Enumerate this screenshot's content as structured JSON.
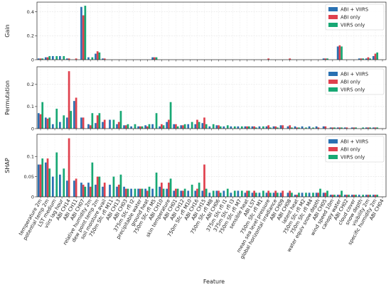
{
  "chart_data": {
    "type": "bar",
    "xlabel": "Feature",
    "legend_position": "top-right",
    "grid": true,
    "categories": [
      "temperature 2m",
      "potential temp 2m",
      "LST medium",
      "viirs lag hour",
      "ABI CH14",
      "ABI CH11",
      "ABI CH07",
      "relative humidity 2m",
      "dew point temp 2m",
      "soil moisture avail",
      "750m Sfc rfl M11",
      "ABI CH13",
      "ABI CH03",
      "375m Sfc rfl I2",
      "precipitable water",
      "ground heat",
      "750m Sfc rfl M5",
      "ABI CH10",
      "skin temperature",
      "ABI CH01",
      "ABI CH12",
      "750m Sfc rfl M10",
      "ABI CH16",
      "ABI CH15",
      "750m Sfc rfl M8",
      "ABI CH06",
      "375m Sfc rfl I1",
      "375m Sfc rfl I3",
      "750m Sfc rfl M7",
      "sensible heat",
      "ABI LST",
      "750m Sfc rfl M1",
      "mean sea level pressure",
      "global horizontal irradiance",
      "ABI CH09",
      "ABI CH08",
      "latent heat",
      "750m Sfc rfl M2",
      "750m Sfc rfl M4",
      "water equiv snow depth",
      "ABI CH05",
      "wind speed 10m",
      "canopy water",
      "ABI CH02",
      "cloud cover",
      "snow depth",
      "visibility 2m",
      "specific humidity 2m",
      "ABI CH04"
    ],
    "colors": {
      "ABI + VIIRS": "#2a71b2",
      "ABI only": "#e0414e",
      "VIIRS only": "#18a874"
    },
    "panels": [
      {
        "ylabel": "Gain",
        "ylim": [
          0,
          0.48
        ],
        "yticks": [
          0,
          0.2,
          0.4
        ],
        "series": [
          {
            "name": "ABI + VIIRS",
            "values": [
              0.01,
              0.02,
              0.03,
              0.03,
              0.01,
              0.0,
              0.44,
              0.02,
              0.05,
              0.01,
              0.0,
              0.0,
              0.0,
              0.0,
              0.0,
              0.0,
              0.02,
              0.0,
              0.0,
              0.0,
              0.0,
              0.0,
              0.0,
              0.0,
              0.0,
              0.0,
              0.0,
              0.0,
              0.0,
              0.0,
              0.0,
              0.0,
              0.0,
              0.0,
              0.0,
              0.0,
              0.0,
              0.0,
              0.0,
              0.0,
              0.01,
              0.0,
              0.11,
              0.0,
              0.0,
              0.01,
              0.01,
              0.03,
              0.0
            ]
          },
          {
            "name": "ABI only",
            "values": [
              0.01,
              0.02,
              0.0,
              0.0,
              0.01,
              0.01,
              0.37,
              0.0,
              0.07,
              0.01,
              0.0,
              0.0,
              0.0,
              0.0,
              0.0,
              0.0,
              0.02,
              0.0,
              0.0,
              0.0,
              0.0,
              0.0,
              0.0,
              0.0,
              0.0,
              0.0,
              0.0,
              0.0,
              0.0,
              0.0,
              0.0,
              0.0,
              0.01,
              0.0,
              0.0,
              0.01,
              0.0,
              0.0,
              0.0,
              0.0,
              0.01,
              0.0,
              0.12,
              0.0,
              0.0,
              0.01,
              0.02,
              0.05,
              0.0
            ]
          },
          {
            "name": "VIIRS only",
            "values": [
              0.01,
              0.03,
              0.03,
              0.03,
              0.0,
              0.0,
              0.45,
              0.02,
              0.06,
              0.0,
              0.0,
              0.0,
              0.0,
              0.0,
              0.0,
              0.0,
              0.02,
              0.0,
              0.0,
              0.0,
              0.0,
              0.0,
              0.0,
              0.0,
              0.0,
              0.0,
              0.0,
              0.0,
              0.0,
              0.0,
              0.0,
              0.0,
              0.0,
              0.0,
              0.0,
              0.0,
              0.0,
              0.0,
              0.0,
              0.0,
              0.01,
              0.0,
              0.11,
              0.0,
              0.0,
              0.01,
              0.01,
              0.06,
              0.0
            ]
          }
        ]
      },
      {
        "ylabel": "Permutation",
        "ylim": [
          0,
          0.28
        ],
        "yticks": [
          0,
          0.1,
          0.2
        ],
        "series": [
          {
            "name": "ABI + VIIRS",
            "values": [
              0.07,
              0.05,
              0.02,
              0.03,
              0.05,
              0.125,
              0.05,
              0.02,
              0.025,
              0.03,
              0.04,
              0.02,
              0.015,
              0.01,
              0.01,
              0.015,
              0.02,
              0.01,
              0.03,
              0.02,
              0.015,
              0.02,
              0.02,
              0.025,
              0.01,
              0.015,
              0.01,
              0.01,
              0.01,
              0.01,
              0.01,
              0.01,
              0.01,
              0.01,
              0.015,
              0.01,
              0.01,
              0.01,
              0.01,
              0.01,
              0.01,
              0.005,
              0.005,
              0.005,
              0.005,
              0.0,
              0.005,
              0.005,
              0.0
            ]
          },
          {
            "name": "ABI only",
            "values": [
              0.065,
              0.045,
              0.0,
              0.0,
              0.26,
              0.14,
              0.05,
              0.015,
              0.06,
              0.04,
              0.0,
              0.03,
              0.015,
              0.0,
              0.01,
              0.01,
              0.0,
              0.02,
              0.04,
              0.02,
              0.015,
              0.0,
              0.04,
              0.05,
              0.0,
              0.015,
              0.0,
              0.0,
              0.0,
              0.01,
              0.01,
              0.0,
              0.015,
              0.01,
              0.015,
              0.015,
              0.005,
              0.0,
              0.0,
              0.005,
              0.01,
              0.005,
              0.005,
              0.005,
              0.005,
              0.0,
              0.005,
              0.005,
              0.0
            ]
          },
          {
            "name": "VIIRS only",
            "values": [
              0.12,
              0.05,
              0.09,
              0.06,
              0.08,
              0.0,
              0.0,
              0.07,
              0.07,
              0.0,
              0.04,
              0.08,
              0.02,
              0.02,
              0.01,
              0.02,
              0.07,
              0.015,
              0.12,
              0.01,
              0.02,
              0.03,
              0.03,
              0.02,
              0.02,
              0.01,
              0.015,
              0.01,
              0.01,
              0.01,
              0.005,
              0.01,
              0.005,
              0.005,
              0.0,
              0.005,
              0.005,
              0.005,
              0.005,
              0.0,
              0.0,
              0.005,
              0.005,
              0.0,
              0.005,
              0.005,
              0.005,
              0.005,
              0.0
            ]
          }
        ]
      },
      {
        "ylabel": "SHAP",
        "ylim": [
          0,
          0.155
        ],
        "yticks": [
          0,
          0.05,
          0.1
        ],
        "series": [
          {
            "name": "ABI + VIIRS",
            "values": [
              0.08,
              0.085,
              0.05,
              0.055,
              0.04,
              0.04,
              0.035,
              0.035,
              0.03,
              0.025,
              0.03,
              0.025,
              0.025,
              0.02,
              0.02,
              0.02,
              0.02,
              0.025,
              0.02,
              0.015,
              0.015,
              0.015,
              0.015,
              0.015,
              0.01,
              0.015,
              0.015,
              0.01,
              0.015,
              0.01,
              0.01,
              0.01,
              0.01,
              0.01,
              0.01,
              0.01,
              0.005,
              0.01,
              0.01,
              0.01,
              0.01,
              0.005,
              0.005,
              0.005,
              0.005,
              0.005,
              0.005,
              0.005,
              0.0
            ]
          },
          {
            "name": "ABI only",
            "values": [
              0.08,
              0.095,
              0.0,
              0.0,
              0.145,
              0.045,
              0.03,
              0.025,
              0.05,
              0.035,
              0.0,
              0.03,
              0.02,
              0.0,
              0.02,
              0.015,
              0.0,
              0.035,
              0.035,
              0.02,
              0.015,
              0.0,
              0.02,
              0.08,
              0.0,
              0.015,
              0.0,
              0.0,
              0.0,
              0.015,
              0.015,
              0.0,
              0.015,
              0.015,
              0.015,
              0.015,
              0.005,
              0.0,
              0.0,
              0.01,
              0.01,
              0.005,
              0.005,
              0.005,
              0.005,
              0.0,
              0.005,
              0.005,
              0.0
            ]
          },
          {
            "name": "VIIRS only",
            "values": [
              0.095,
              0.07,
              0.11,
              0.07,
              0.0,
              0.0,
              0.025,
              0.085,
              0.05,
              0.0,
              0.05,
              0.055,
              0.02,
              0.02,
              0.02,
              0.025,
              0.06,
              0.02,
              0.045,
              0.02,
              0.02,
              0.03,
              0.035,
              0.02,
              0.015,
              0.01,
              0.02,
              0.015,
              0.015,
              0.015,
              0.01,
              0.015,
              0.01,
              0.01,
              0.0,
              0.01,
              0.01,
              0.01,
              0.01,
              0.02,
              0.015,
              0.005,
              0.015,
              0.005,
              0.005,
              0.005,
              0.005,
              0.005,
              0.0
            ]
          }
        ]
      }
    ]
  }
}
